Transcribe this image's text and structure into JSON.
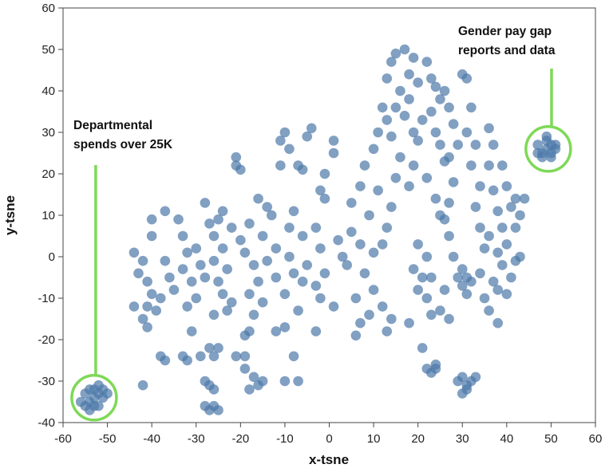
{
  "chart_data": {
    "type": "scatter",
    "title": "",
    "xlabel": "x-tsne",
    "ylabel": "y-tsne",
    "xlim": [
      -60,
      60
    ],
    "ylim": [
      -40,
      60
    ],
    "x_ticks": [
      -60,
      -50,
      -40,
      -30,
      -20,
      -10,
      0,
      10,
      20,
      30,
      40,
      50,
      60
    ],
    "y_ticks": [
      -40,
      -30,
      -20,
      -10,
      0,
      10,
      20,
      30,
      40,
      50,
      60
    ],
    "grid": false,
    "point_color": "#4c78a8",
    "point_opacity": 0.7,
    "highlight_color": "#7ed957",
    "annotations": [
      {
        "text_lines": [
          "Departmental",
          "spends over 25K"
        ],
        "cluster_center": [
          -53,
          -34
        ]
      },
      {
        "text_lines": [
          "Gender pay gap",
          "reports and data"
        ],
        "cluster_center": [
          49,
          26
        ]
      }
    ],
    "points": [
      [
        -53,
        -34
      ],
      [
        -52,
        -33
      ],
      [
        -54,
        -35
      ],
      [
        -51,
        -34
      ],
      [
        -55,
        -33
      ],
      [
        -53,
        -32
      ],
      [
        -52,
        -36
      ],
      [
        -54,
        -32
      ],
      [
        -50,
        -33
      ],
      [
        -56,
        -35
      ],
      [
        -53,
        -36
      ],
      [
        -51,
        -32
      ],
      [
        -55,
        -36
      ],
      [
        -52,
        -31
      ],
      [
        -54,
        -37
      ],
      [
        49,
        26
      ],
      [
        50,
        27
      ],
      [
        48,
        25
      ],
      [
        51,
        26
      ],
      [
        47,
        27
      ],
      [
        49,
        28
      ],
      [
        50,
        25
      ],
      [
        48,
        24
      ],
      [
        51,
        27
      ],
      [
        49,
        29
      ],
      [
        47,
        25
      ],
      [
        50,
        24
      ],
      [
        -44,
        1
      ],
      [
        -42,
        -1
      ],
      [
        -43,
        -4
      ],
      [
        -41,
        -6
      ],
      [
        -40,
        -9
      ],
      [
        -44,
        -12
      ],
      [
        -41,
        -12
      ],
      [
        -38,
        -10
      ],
      [
        -42,
        -15
      ],
      [
        -41,
        -17
      ],
      [
        -39,
        -13
      ],
      [
        -40,
        5
      ],
      [
        -40,
        9
      ],
      [
        -37,
        11
      ],
      [
        -37,
        -1
      ],
      [
        -36,
        -5
      ],
      [
        -38,
        -24
      ],
      [
        -37,
        -25
      ],
      [
        -42,
        -31
      ],
      [
        -35,
        -8
      ],
      [
        -33,
        -3
      ],
      [
        -32,
        1
      ],
      [
        -33,
        5
      ],
      [
        -34,
        9
      ],
      [
        -31,
        -6
      ],
      [
        -30,
        -10
      ],
      [
        -32,
        -12
      ],
      [
        -30,
        2
      ],
      [
        -29,
        -2
      ],
      [
        -28,
        -5
      ],
      [
        -31,
        -18
      ],
      [
        -33,
        -24
      ],
      [
        -32,
        -25
      ],
      [
        -28,
        13
      ],
      [
        -29,
        -24
      ],
      [
        -27,
        -22
      ],
      [
        -26,
        -24
      ],
      [
        -25,
        -22
      ],
      [
        -28,
        -30
      ],
      [
        -27,
        -31
      ],
      [
        -26,
        -32
      ],
      [
        -28,
        -36
      ],
      [
        -26,
        -36
      ],
      [
        -27,
        -37
      ],
      [
        -25,
        -37
      ],
      [
        -27,
        8
      ],
      [
        -25,
        9
      ],
      [
        -26,
        5
      ],
      [
        -24,
        2
      ],
      [
        -26,
        -1
      ],
      [
        -23,
        -3
      ],
      [
        -25,
        -6
      ],
      [
        -24,
        -9
      ],
      [
        -22,
        -11
      ],
      [
        -23,
        -13
      ],
      [
        -26,
        -14
      ],
      [
        -24,
        11
      ],
      [
        -22,
        7
      ],
      [
        -21,
        22
      ],
      [
        -21,
        24
      ],
      [
        -20,
        21
      ],
      [
        -21,
        -24
      ],
      [
        -19,
        -24
      ],
      [
        -19,
        -27
      ],
      [
        -17,
        -29
      ],
      [
        -16,
        -31
      ],
      [
        -18,
        -32
      ],
      [
        -15,
        -30
      ],
      [
        -19,
        -19
      ],
      [
        -18,
        -18
      ],
      [
        -20,
        4
      ],
      [
        -18,
        8
      ],
      [
        -19,
        1
      ],
      [
        -17,
        -2
      ],
      [
        -16,
        -6
      ],
      [
        -18,
        -9
      ],
      [
        -15,
        -11
      ],
      [
        -17,
        -14
      ],
      [
        -14,
        12
      ],
      [
        -16,
        14
      ],
      [
        -13,
        10
      ],
      [
        -15,
        5
      ],
      [
        -12,
        2
      ],
      [
        -14,
        -1
      ],
      [
        -12,
        -5
      ],
      [
        -11,
        22
      ],
      [
        -11,
        28
      ],
      [
        -10,
        30
      ],
      [
        -9,
        26
      ],
      [
        -12,
        -18
      ],
      [
        -10,
        -17
      ],
      [
        -8,
        -24
      ],
      [
        -10,
        -30
      ],
      [
        -7,
        -30
      ],
      [
        -9,
        0
      ],
      [
        -8,
        -4
      ],
      [
        -10,
        -9
      ],
      [
        -7,
        -13
      ],
      [
        -9,
        7
      ],
      [
        -8,
        11
      ],
      [
        -6,
        5
      ],
      [
        -6,
        -6
      ],
      [
        -5,
        -2
      ],
      [
        -7,
        22
      ],
      [
        -6,
        21
      ],
      [
        -5,
        29
      ],
      [
        -4,
        31
      ],
      [
        -3,
        -18
      ],
      [
        -2,
        -10
      ],
      [
        -3,
        -7
      ],
      [
        -1,
        -4
      ],
      [
        -2,
        2
      ],
      [
        -3,
        7
      ],
      [
        -1,
        14
      ],
      [
        -2,
        16
      ],
      [
        -1,
        20
      ],
      [
        1,
        -12
      ],
      [
        1,
        28
      ],
      [
        1,
        25
      ],
      [
        2,
        4
      ],
      [
        3,
        0
      ],
      [
        4,
        -2
      ],
      [
        5,
        6
      ],
      [
        6,
        -10
      ],
      [
        7,
        -16
      ],
      [
        6,
        -19
      ],
      [
        5,
        13
      ],
      [
        7,
        17
      ],
      [
        8,
        22
      ],
      [
        8,
        -4
      ],
      [
        7,
        3
      ],
      [
        9,
        -14
      ],
      [
        10,
        -8
      ],
      [
        10,
        1
      ],
      [
        9,
        10
      ],
      [
        11,
        16
      ],
      [
        10,
        26
      ],
      [
        11,
        30
      ],
      [
        12,
        36
      ],
      [
        13,
        33
      ],
      [
        12,
        -12
      ],
      [
        13,
        -18
      ],
      [
        14,
        -15
      ],
      [
        12,
        3
      ],
      [
        13,
        7
      ],
      [
        14,
        12
      ],
      [
        15,
        19
      ],
      [
        16,
        24
      ],
      [
        14,
        29
      ],
      [
        14,
        47
      ],
      [
        15,
        49
      ],
      [
        13,
        43
      ],
      [
        16,
        40
      ],
      [
        15,
        36
      ],
      [
        17,
        34
      ],
      [
        18,
        38
      ],
      [
        17,
        50
      ],
      [
        19,
        48
      ],
      [
        18,
        44
      ],
      [
        20,
        42
      ],
      [
        19,
        30
      ],
      [
        20,
        28
      ],
      [
        21,
        33
      ],
      [
        19,
        22
      ],
      [
        18,
        17
      ],
      [
        21,
        -22
      ],
      [
        22,
        -27
      ],
      [
        23,
        -28
      ],
      [
        24,
        -26
      ],
      [
        24,
        -27
      ],
      [
        23,
        -14
      ],
      [
        22,
        -10
      ],
      [
        21,
        -5
      ],
      [
        22,
        0
      ],
      [
        20,
        3
      ],
      [
        19,
        -3
      ],
      [
        20,
        -8
      ],
      [
        18,
        -16
      ],
      [
        22,
        47
      ],
      [
        23,
        43
      ],
      [
        24,
        41
      ],
      [
        25,
        38
      ],
      [
        23,
        35
      ],
      [
        24,
        30
      ],
      [
        25,
        27
      ],
      [
        26,
        23
      ],
      [
        22,
        19
      ],
      [
        24,
        14
      ],
      [
        25,
        10
      ],
      [
        23,
        -5
      ],
      [
        25,
        -13
      ],
      [
        26,
        40
      ],
      [
        27,
        36
      ],
      [
        28,
        32
      ],
      [
        29,
        27
      ],
      [
        27,
        24
      ],
      [
        28,
        18
      ],
      [
        27,
        13
      ],
      [
        26,
        9
      ],
      [
        27,
        5
      ],
      [
        28,
        0
      ],
      [
        26,
        -8
      ],
      [
        27,
        -15
      ],
      [
        29,
        -30
      ],
      [
        30,
        -29
      ],
      [
        31,
        -31
      ],
      [
        32,
        -30
      ],
      [
        33,
        -29
      ],
      [
        30,
        -33
      ],
      [
        31,
        -32
      ],
      [
        29,
        -5
      ],
      [
        30,
        -7
      ],
      [
        31,
        -9
      ],
      [
        32,
        -6
      ],
      [
        30,
        -3
      ],
      [
        31,
        -5
      ],
      [
        30,
        44
      ],
      [
        31,
        43
      ],
      [
        32,
        36
      ],
      [
        31,
        30
      ],
      [
        33,
        27
      ],
      [
        32,
        22
      ],
      [
        34,
        17
      ],
      [
        33,
        12
      ],
      [
        34,
        7
      ],
      [
        35,
        2
      ],
      [
        34,
        -4
      ],
      [
        35,
        -10
      ],
      [
        36,
        22
      ],
      [
        37,
        27
      ],
      [
        36,
        31
      ],
      [
        37,
        16
      ],
      [
        38,
        11
      ],
      [
        36,
        5
      ],
      [
        38,
        1
      ],
      [
        37,
        -6
      ],
      [
        36,
        -13
      ],
      [
        38,
        -16
      ],
      [
        39,
        22
      ],
      [
        40,
        17
      ],
      [
        41,
        12
      ],
      [
        39,
        7
      ],
      [
        40,
        3
      ],
      [
        42,
        -1
      ],
      [
        41,
        -5
      ],
      [
        40,
        -9
      ],
      [
        42,
        14
      ],
      [
        43,
        10
      ],
      [
        44,
        14
      ],
      [
        42,
        7
      ],
      [
        43,
        0
      ],
      [
        39,
        -2
      ],
      [
        38,
        -8
      ]
    ]
  }
}
